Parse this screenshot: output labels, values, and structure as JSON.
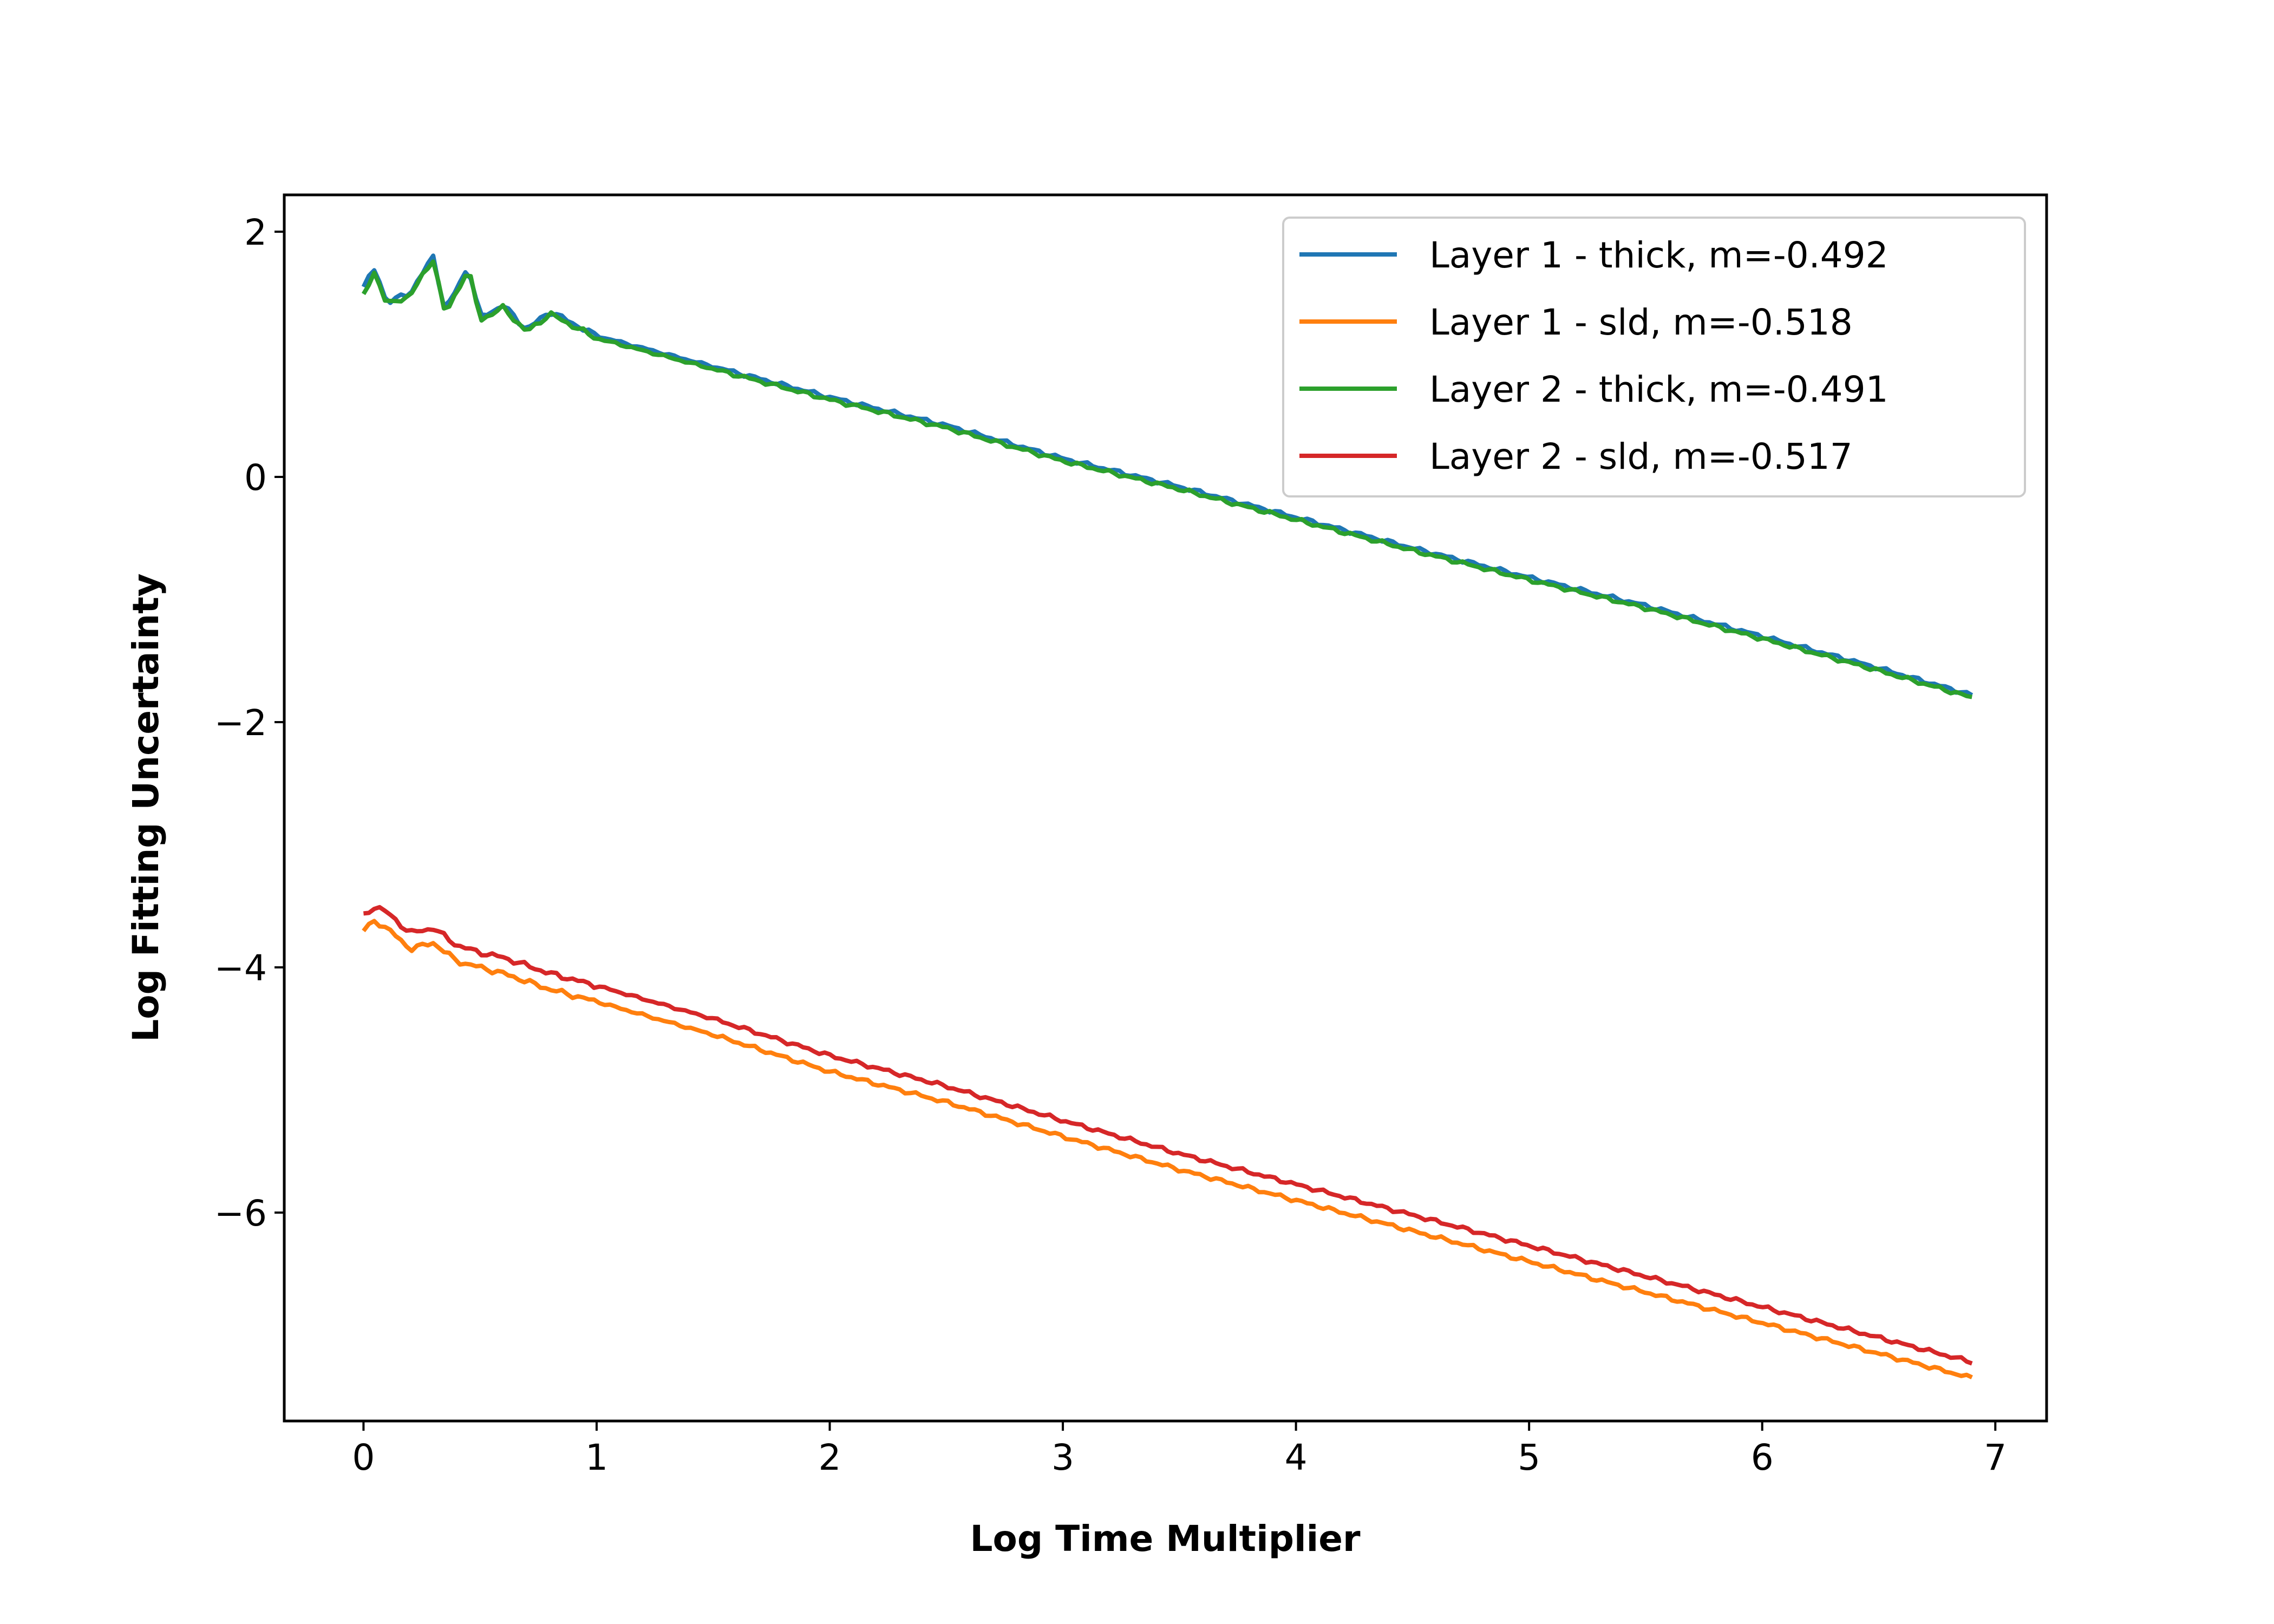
{
  "chart_data": {
    "type": "line",
    "title": "",
    "xlabel": "Log Time Multiplier",
    "ylabel": "Log Fitting Uncertainty",
    "xlim": [
      -0.34,
      7.22
    ],
    "ylim": [
      -7.7,
      2.3
    ],
    "xticks": [
      0,
      1,
      2,
      3,
      4,
      5,
      6,
      7
    ],
    "yticks": [
      -6,
      -4,
      -2,
      0,
      2
    ],
    "xtick_labels": [
      "0",
      "1",
      "2",
      "3",
      "4",
      "5",
      "6",
      "7"
    ],
    "ytick_labels": [
      "−6",
      "−4",
      "−2",
      "0",
      "2"
    ],
    "grid": false,
    "legend_position": "top-right",
    "x_range": [
      0,
      6.9
    ],
    "series": [
      {
        "name": "Layer 1 - thick, m=-0.492",
        "color": "#1f77b4",
        "start": 1.55,
        "end": -1.78,
        "points": [
          [
            0,
            1.55
          ],
          [
            0.05,
            1.7
          ],
          [
            0.1,
            1.42
          ],
          [
            0.2,
            1.5
          ],
          [
            0.3,
            1.8
          ],
          [
            0.35,
            1.35
          ],
          [
            0.45,
            1.72
          ],
          [
            0.5,
            1.3
          ],
          [
            0.6,
            1.4
          ],
          [
            0.7,
            1.2
          ],
          [
            0.8,
            1.35
          ],
          [
            1.0,
            1.15
          ],
          [
            1.2,
            1.05
          ],
          [
            1.5,
            0.9
          ],
          [
            2.0,
            0.65
          ],
          [
            2.5,
            0.42
          ],
          [
            3.0,
            0.15
          ],
          [
            3.5,
            -0.08
          ],
          [
            4.0,
            -0.33
          ],
          [
            4.5,
            -0.58
          ],
          [
            5.0,
            -0.82
          ],
          [
            5.5,
            -1.05
          ],
          [
            6.0,
            -1.3
          ],
          [
            6.5,
            -1.56
          ],
          [
            6.9,
            -1.78
          ]
        ]
      },
      {
        "name": "Layer 1 - sld, m=-0.518",
        "color": "#ff7f0e",
        "start": -3.7,
        "end": -7.35,
        "points": [
          [
            0,
            -3.7
          ],
          [
            0.05,
            -3.62
          ],
          [
            0.1,
            -3.68
          ],
          [
            0.2,
            -3.85
          ],
          [
            0.3,
            -3.8
          ],
          [
            0.4,
            -3.95
          ],
          [
            0.5,
            -4.0
          ],
          [
            0.6,
            -4.05
          ],
          [
            0.8,
            -4.18
          ],
          [
            1.0,
            -4.28
          ],
          [
            1.5,
            -4.55
          ],
          [
            2.0,
            -4.85
          ],
          [
            2.5,
            -5.1
          ],
          [
            3.0,
            -5.38
          ],
          [
            3.5,
            -5.65
          ],
          [
            4.0,
            -5.9
          ],
          [
            4.5,
            -6.15
          ],
          [
            5.0,
            -6.4
          ],
          [
            5.5,
            -6.65
          ],
          [
            6.0,
            -6.9
          ],
          [
            6.5,
            -7.15
          ],
          [
            6.9,
            -7.35
          ]
        ]
      },
      {
        "name": "Layer 2 - thick, m=-0.491",
        "color": "#2ca02c",
        "start": 1.48,
        "end": -1.8,
        "points": [
          [
            0,
            1.48
          ],
          [
            0.05,
            1.68
          ],
          [
            0.1,
            1.4
          ],
          [
            0.2,
            1.48
          ],
          [
            0.3,
            1.78
          ],
          [
            0.35,
            1.32
          ],
          [
            0.45,
            1.7
          ],
          [
            0.5,
            1.28
          ],
          [
            0.6,
            1.38
          ],
          [
            0.7,
            1.18
          ],
          [
            0.8,
            1.33
          ],
          [
            1.0,
            1.13
          ],
          [
            1.2,
            1.03
          ],
          [
            1.5,
            0.88
          ],
          [
            2.0,
            0.63
          ],
          [
            2.5,
            0.4
          ],
          [
            3.0,
            0.13
          ],
          [
            3.5,
            -0.1
          ],
          [
            4.0,
            -0.35
          ],
          [
            4.5,
            -0.6
          ],
          [
            5.0,
            -0.84
          ],
          [
            5.5,
            -1.07
          ],
          [
            6.0,
            -1.32
          ],
          [
            6.5,
            -1.58
          ],
          [
            6.9,
            -1.8
          ]
        ]
      },
      {
        "name": "Layer 2 - sld, m=-0.517",
        "color": "#d62728",
        "start": -3.58,
        "end": -7.22,
        "points": [
          [
            0,
            -3.58
          ],
          [
            0.05,
            -3.5
          ],
          [
            0.1,
            -3.55
          ],
          [
            0.2,
            -3.72
          ],
          [
            0.3,
            -3.68
          ],
          [
            0.4,
            -3.82
          ],
          [
            0.5,
            -3.88
          ],
          [
            0.6,
            -3.92
          ],
          [
            0.8,
            -4.05
          ],
          [
            1.0,
            -4.15
          ],
          [
            1.5,
            -4.42
          ],
          [
            2.0,
            -4.72
          ],
          [
            2.5,
            -4.97
          ],
          [
            3.0,
            -5.25
          ],
          [
            3.5,
            -5.52
          ],
          [
            4.0,
            -5.77
          ],
          [
            4.5,
            -6.02
          ],
          [
            5.0,
            -6.27
          ],
          [
            5.5,
            -6.52
          ],
          [
            6.0,
            -6.77
          ],
          [
            6.5,
            -7.02
          ],
          [
            6.9,
            -7.22
          ]
        ]
      }
    ]
  }
}
